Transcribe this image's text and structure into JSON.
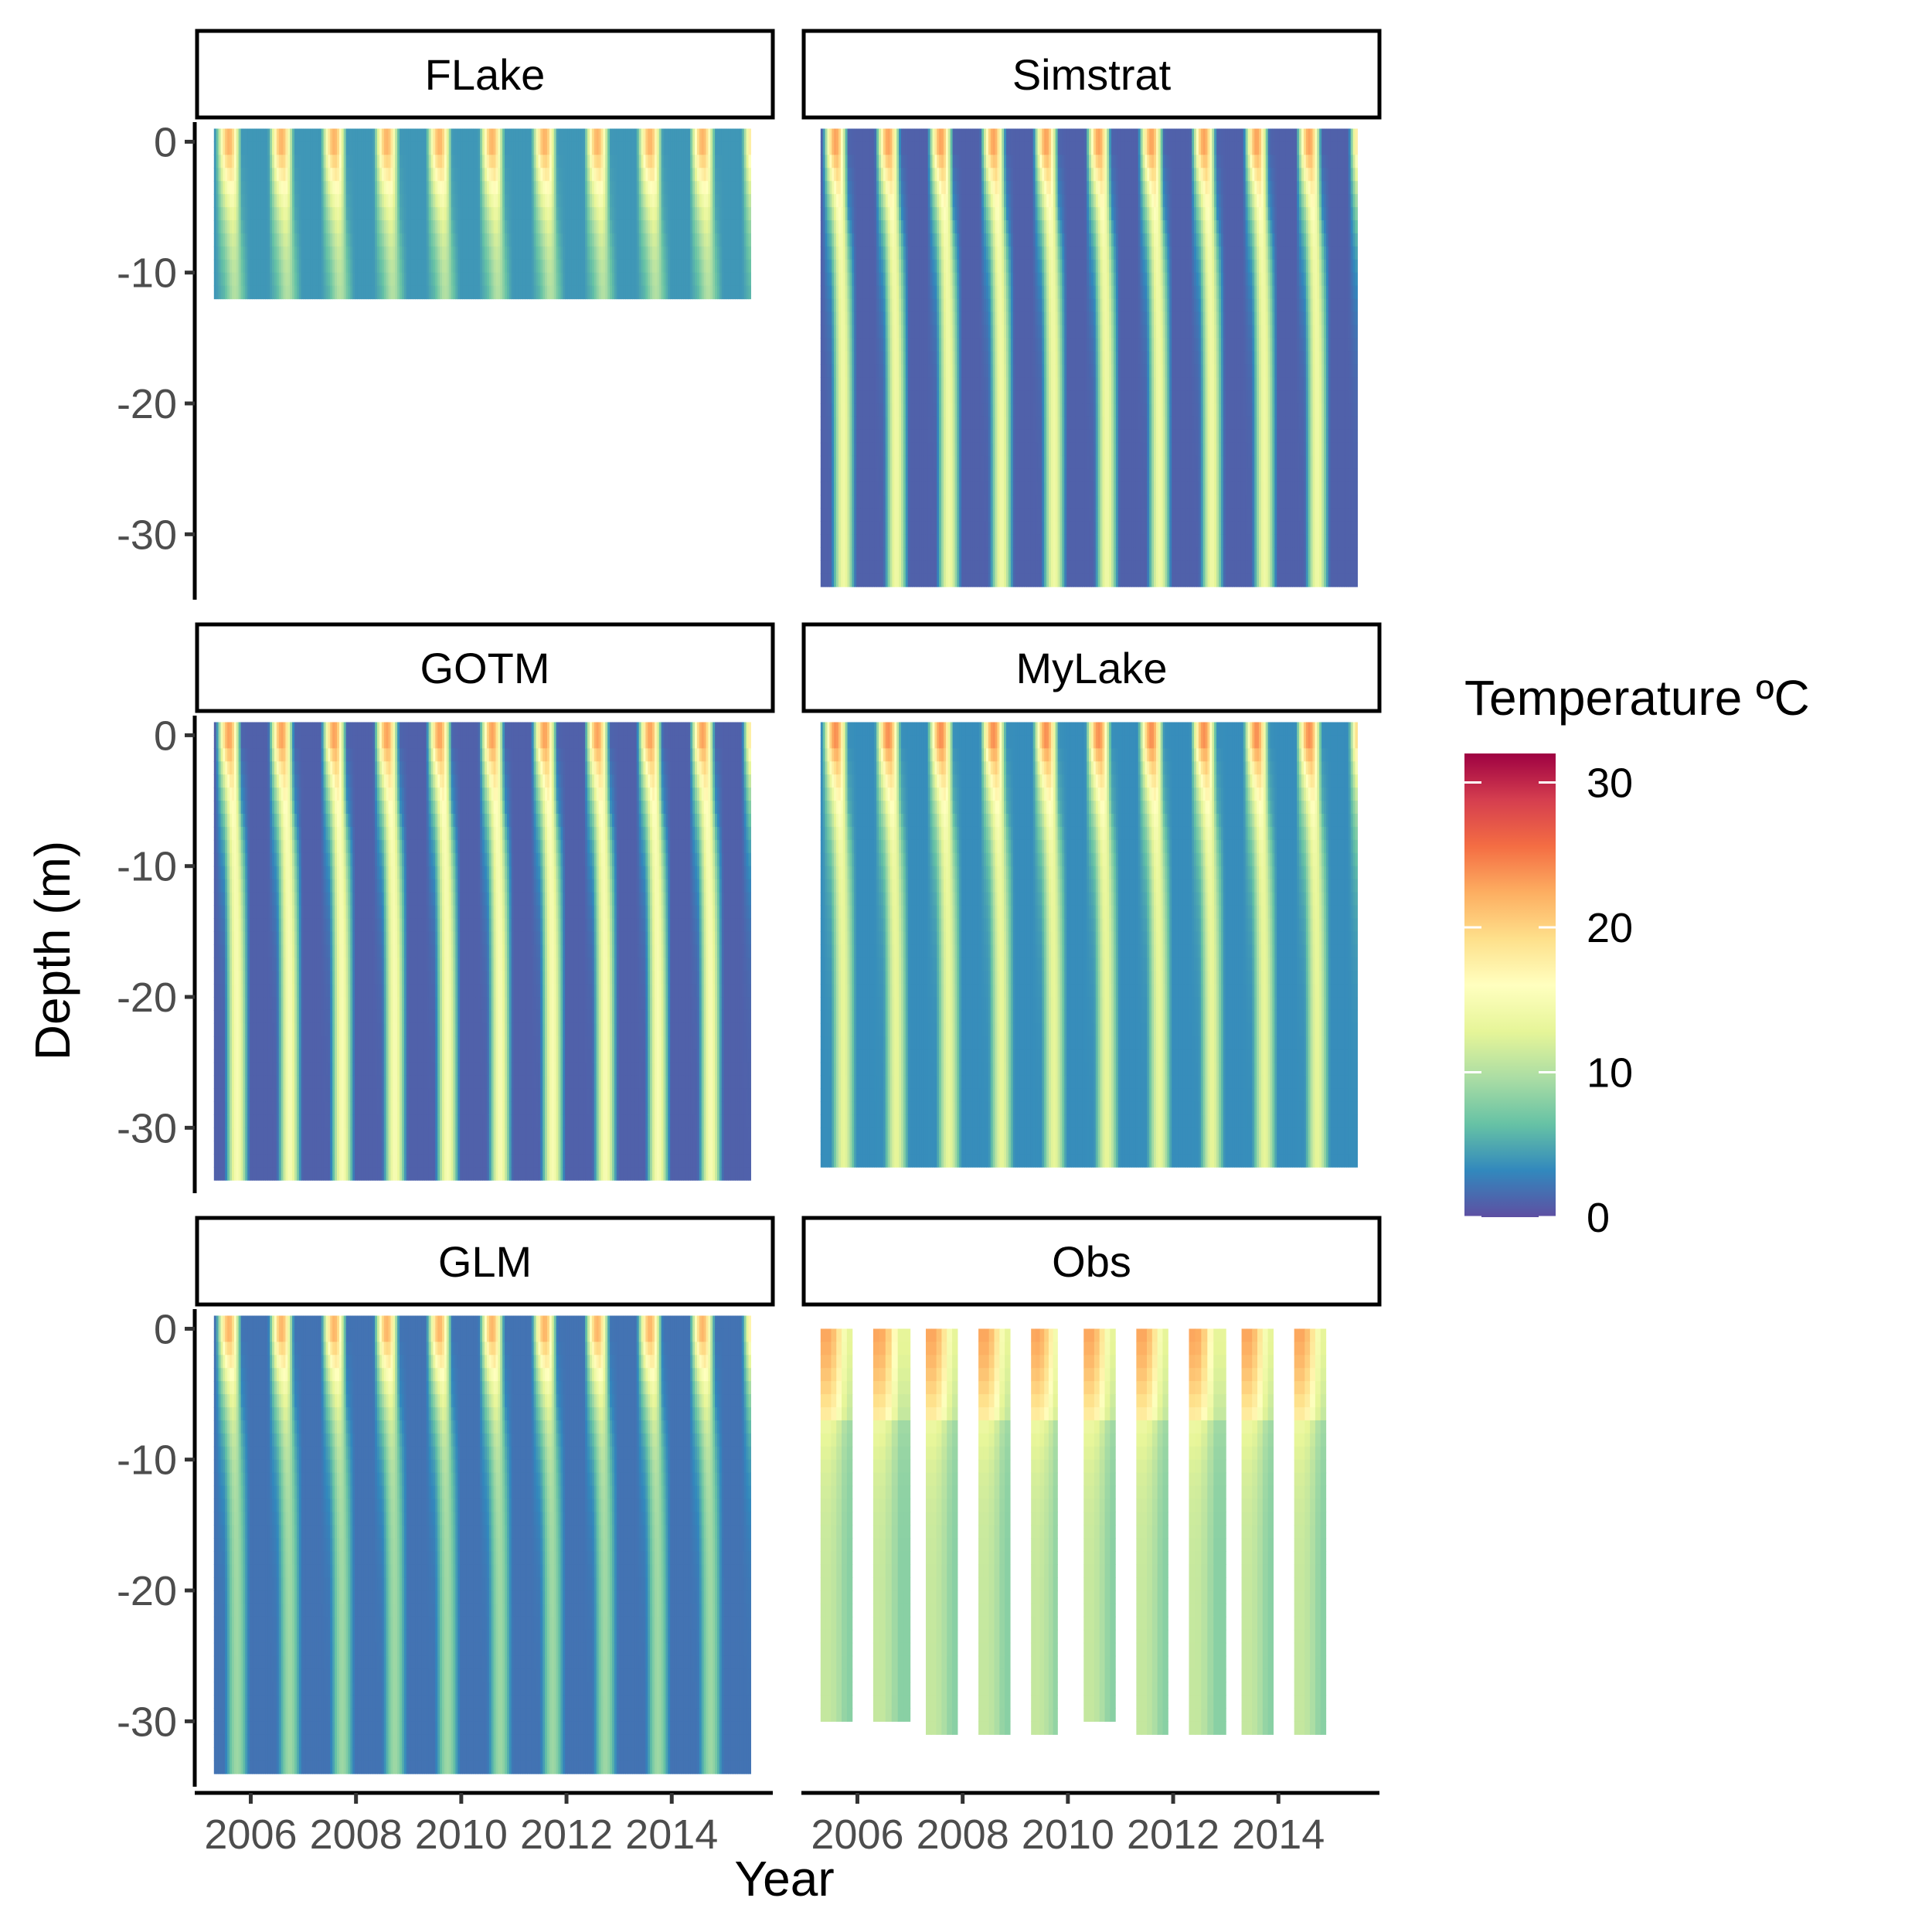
{
  "chart_data": {
    "type": "heatmap",
    "title": "",
    "xlabel": "Year",
    "ylabel": "Depth (m)",
    "xlim": [
      2005.2,
      2015.7
    ],
    "ylim": [
      -35,
      1.5
    ],
    "x_ticks": [
      "2006",
      "2008",
      "2010",
      "2012",
      "2014"
    ],
    "y_ticks": [
      "0",
      "-10",
      "-20",
      "-30"
    ],
    "x_tick_values": [
      2006,
      2008,
      2010,
      2012,
      2014
    ],
    "y_tick_values": [
      0,
      -10,
      -20,
      -30
    ],
    "legend": {
      "title": "Temperature ºC",
      "placement": "right",
      "range": [
        0,
        32
      ],
      "ticks": [
        "0",
        "10",
        "20",
        "30"
      ],
      "tick_values": [
        0,
        10,
        20,
        30
      ],
      "palette": [
        "#5E4FA2",
        "#3288BD",
        "#66C2A5",
        "#ABDDA4",
        "#E6F598",
        "#FFFFBF",
        "#FEE08B",
        "#FDAE61",
        "#F46D43",
        "#D53E4F",
        "#9E0142"
      ]
    },
    "grid": false,
    "panels": [
      {
        "label": "FLake",
        "x_range": [
          2005.3,
          2015.5
        ],
        "depth_range": [
          -12,
          1
        ],
        "summer_surface_max": 23,
        "winter_min": 4,
        "bottom_summer_temp": 9
      },
      {
        "label": "Simstrat",
        "x_range": [
          2005.3,
          2015.5
        ],
        "depth_range": [
          -34,
          1
        ],
        "summer_surface_max": 24,
        "winter_min": 1,
        "bottom_summer_temp": 14
      },
      {
        "label": "GOTM",
        "x_range": [
          2005.3,
          2015.5
        ],
        "depth_range": [
          -34,
          1
        ],
        "summer_surface_max": 24,
        "winter_min": 1,
        "bottom_summer_temp": 15
      },
      {
        "label": "MyLake",
        "x_range": [
          2005.3,
          2015.5
        ],
        "depth_range": [
          -33,
          1
        ],
        "summer_surface_max": 25,
        "winter_min": 3.5,
        "bottom_summer_temp": 13
      },
      {
        "label": "GLM",
        "x_range": [
          2005.3,
          2015.5
        ],
        "depth_range": [
          -34,
          1
        ],
        "summer_surface_max": 23,
        "winter_min": 2,
        "bottom_summer_temp": 9
      },
      {
        "label": "Obs",
        "blocks": [
          {
            "x": [
              2005.3,
              2005.9
            ],
            "depth_range": [
              -30,
              0
            ]
          },
          {
            "x": [
              2006.3,
              2007.0
            ],
            "depth_range": [
              -30,
              0
            ]
          },
          {
            "x": [
              2007.3,
              2007.9
            ],
            "depth_range": [
              -31,
              0
            ]
          },
          {
            "x": [
              2008.3,
              2008.9
            ],
            "depth_range": [
              -31,
              0
            ]
          },
          {
            "x": [
              2009.3,
              2009.8
            ],
            "depth_range": [
              -31,
              0
            ]
          },
          {
            "x": [
              2010.3,
              2010.9
            ],
            "depth_range": [
              -30,
              0
            ]
          },
          {
            "x": [
              2011.3,
              2011.9
            ],
            "depth_range": [
              -31,
              0
            ]
          },
          {
            "x": [
              2012.3,
              2013.0
            ],
            "depth_range": [
              -31,
              0
            ]
          },
          {
            "x": [
              2013.3,
              2013.9
            ],
            "depth_range": [
              -31,
              0
            ]
          },
          {
            "x": [
              2014.3,
              2014.9
            ],
            "depth_range": [
              -31,
              0
            ]
          }
        ]
      }
    ]
  }
}
